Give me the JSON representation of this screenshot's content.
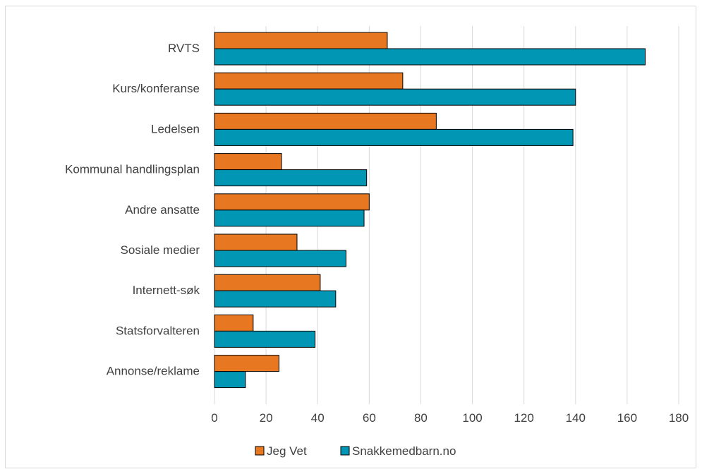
{
  "chart_data": {
    "type": "bar",
    "orientation": "horizontal",
    "title": "",
    "xlabel": "",
    "ylabel": "",
    "categories": [
      "RVTS",
      "Kurs/konferanse",
      "Ledelsen",
      "Kommunal handlingsplan",
      "Andre ansatte",
      "Sosiale medier",
      "Internett-søk",
      "Statsforvalteren",
      "Annonse/reklame"
    ],
    "series": [
      {
        "name": "Jeg Vet",
        "color": "#e87722",
        "values": [
          67,
          73,
          86,
          26,
          60,
          32,
          41,
          15,
          25
        ]
      },
      {
        "name": "Snakkemedbarn.no",
        "color": "#0096b4",
        "values": [
          167,
          140,
          139,
          59,
          58,
          51,
          47,
          39,
          12
        ]
      }
    ],
    "xlim": [
      0,
      180
    ],
    "xticks": [
      "0",
      "20",
      "40",
      "60",
      "80",
      "100",
      "120",
      "140",
      "160",
      "180"
    ],
    "grid": "vertical",
    "legend_position": "bottom"
  }
}
